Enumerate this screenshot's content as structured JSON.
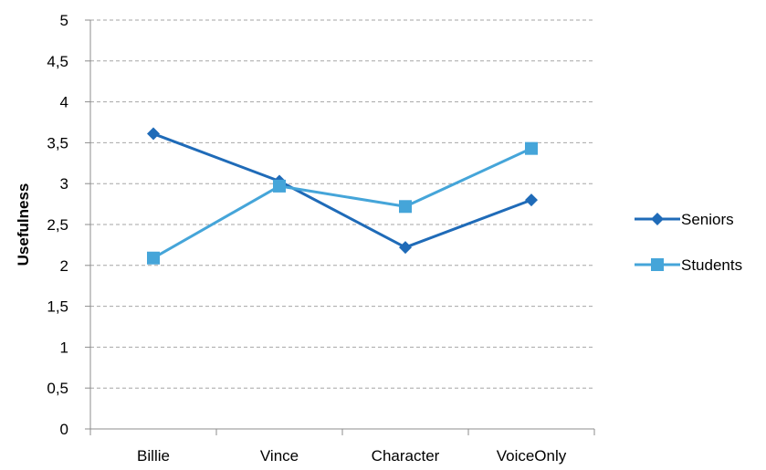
{
  "chart_data": {
    "type": "line",
    "title": "",
    "xlabel": "",
    "ylabel": "Usefulness",
    "categories": [
      "Billie",
      "Vince",
      "Character",
      "VoiceOnly"
    ],
    "ylim": [
      0,
      5
    ],
    "yticks": [
      "0",
      "0,5",
      "1",
      "1,5",
      "2",
      "2,5",
      "3",
      "3,5",
      "4",
      "4,5",
      "5"
    ],
    "grid": true,
    "legend_position": "right",
    "series": [
      {
        "name": "Seniors",
        "values": [
          3.61,
          3.03,
          2.22,
          2.8
        ],
        "color": "#1f6bb8",
        "marker": "diamond"
      },
      {
        "name": "Students",
        "values": [
          2.09,
          2.97,
          2.72,
          3.43
        ],
        "color": "#45a5d9",
        "marker": "square"
      }
    ]
  }
}
